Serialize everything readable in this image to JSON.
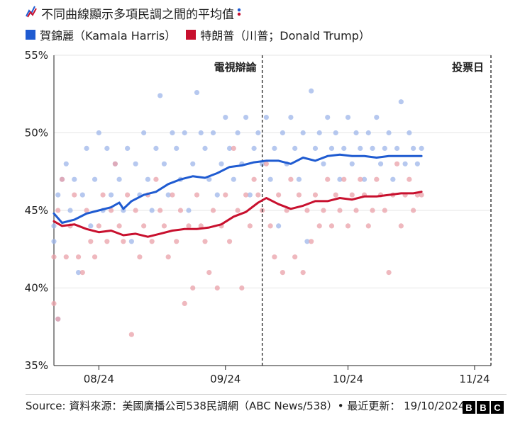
{
  "title": "不同曲線顯示多項民調之間的平均值",
  "legend": {
    "harris": "賀錦麗（Kamala Harris）",
    "trump": "特朗普（川普；Donald Trump）"
  },
  "footer": {
    "source": "Source: 資料來源：美國廣播公司538民調網（ABC News/538）• 最近更新： 19/10/2024",
    "logo_letters": [
      "B",
      "B",
      "C"
    ]
  },
  "colors": {
    "harris": "#1f5bd1",
    "trump": "#c8102e",
    "harris_dot": "#9db5ea",
    "trump_dot": "#eaa0a8"
  },
  "chart_data": {
    "type": "line",
    "x_start": "2024-07-21",
    "x_end": "2024-11-05",
    "ylim": [
      35,
      55
    ],
    "y_ticks": [
      {
        "v": 55,
        "label": "55%"
      },
      {
        "v": 50,
        "label": "50%"
      },
      {
        "v": 45,
        "label": "45%"
      },
      {
        "v": 40,
        "label": "40%"
      },
      {
        "v": 35,
        "label": "35%"
      }
    ],
    "x_ticks": [
      {
        "date": "2024-08-01",
        "label": "08/24"
      },
      {
        "date": "2024-09-01",
        "label": "09/24"
      },
      {
        "date": "2024-10-01",
        "label": "10/24"
      },
      {
        "date": "2024-11-01",
        "label": "11/24"
      }
    ],
    "grid": true,
    "legend_position": "top-left",
    "annotations": [
      {
        "date": "2024-09-10",
        "label": "電視辯論"
      },
      {
        "date": "2024-11-05",
        "label": "投票日"
      }
    ],
    "series": [
      {
        "name": "賀錦麗（Kamala Harris）",
        "key": "harris",
        "line": [
          [
            "2024-07-21",
            44.8
          ],
          [
            "2024-07-23",
            44.2
          ],
          [
            "2024-07-26",
            44.4
          ],
          [
            "2024-07-29",
            44.8
          ],
          [
            "2024-08-01",
            45.0
          ],
          [
            "2024-08-04",
            45.2
          ],
          [
            "2024-08-06",
            45.5
          ],
          [
            "2024-08-07",
            45.1
          ],
          [
            "2024-08-09",
            45.6
          ],
          [
            "2024-08-12",
            46.0
          ],
          [
            "2024-08-15",
            46.2
          ],
          [
            "2024-08-18",
            46.7
          ],
          [
            "2024-08-21",
            47.0
          ],
          [
            "2024-08-24",
            47.2
          ],
          [
            "2024-08-27",
            47.1
          ],
          [
            "2024-08-30",
            47.4
          ],
          [
            "2024-09-02",
            47.8
          ],
          [
            "2024-09-05",
            47.9
          ],
          [
            "2024-09-08",
            48.1
          ],
          [
            "2024-09-11",
            48.2
          ],
          [
            "2024-09-14",
            48.2
          ],
          [
            "2024-09-17",
            48.0
          ],
          [
            "2024-09-20",
            48.4
          ],
          [
            "2024-09-23",
            48.2
          ],
          [
            "2024-09-26",
            48.5
          ],
          [
            "2024-09-29",
            48.6
          ],
          [
            "2024-10-02",
            48.5
          ],
          [
            "2024-10-05",
            48.5
          ],
          [
            "2024-10-08",
            48.4
          ],
          [
            "2024-10-11",
            48.5
          ],
          [
            "2024-10-14",
            48.5
          ],
          [
            "2024-10-17",
            48.5
          ],
          [
            "2024-10-19",
            48.5
          ]
        ],
        "polls": [
          [
            "2024-07-21",
            43
          ],
          [
            "2024-07-21",
            44
          ],
          [
            "2024-07-22",
            46
          ],
          [
            "2024-07-22",
            38
          ],
          [
            "2024-07-23",
            47
          ],
          [
            "2024-07-24",
            48
          ],
          [
            "2024-07-25",
            45
          ],
          [
            "2024-07-26",
            47
          ],
          [
            "2024-07-27",
            41
          ],
          [
            "2024-07-28",
            46
          ],
          [
            "2024-07-29",
            49
          ],
          [
            "2024-07-30",
            44
          ],
          [
            "2024-07-31",
            47
          ],
          [
            "2024-08-01",
            50
          ],
          [
            "2024-08-02",
            45
          ],
          [
            "2024-08-03",
            49
          ],
          [
            "2024-08-04",
            46
          ],
          [
            "2024-08-05",
            48
          ],
          [
            "2024-08-06",
            47
          ],
          [
            "2024-08-07",
            45
          ],
          [
            "2024-08-08",
            49
          ],
          [
            "2024-08-09",
            43
          ],
          [
            "2024-08-10",
            48
          ],
          [
            "2024-08-11",
            46
          ],
          [
            "2024-08-12",
            50
          ],
          [
            "2024-08-13",
            47
          ],
          [
            "2024-08-14",
            45
          ],
          [
            "2024-08-15",
            49
          ],
          [
            "2024-08-16",
            52.4
          ],
          [
            "2024-08-17",
            48
          ],
          [
            "2024-08-18",
            46
          ],
          [
            "2024-08-19",
            50
          ],
          [
            "2024-08-20",
            49
          ],
          [
            "2024-08-21",
            47
          ],
          [
            "2024-08-22",
            50
          ],
          [
            "2024-08-23",
            45
          ],
          [
            "2024-08-24",
            48
          ],
          [
            "2024-08-25",
            52.6
          ],
          [
            "2024-08-26",
            50
          ],
          [
            "2024-08-27",
            49
          ],
          [
            "2024-08-28",
            47
          ],
          [
            "2024-08-29",
            50
          ],
          [
            "2024-08-30",
            46
          ],
          [
            "2024-08-31",
            48
          ],
          [
            "2024-09-01",
            51
          ],
          [
            "2024-09-02",
            49
          ],
          [
            "2024-09-03",
            47
          ],
          [
            "2024-09-04",
            50
          ],
          [
            "2024-09-05",
            48
          ],
          [
            "2024-09-06",
            51
          ],
          [
            "2024-09-07",
            46
          ],
          [
            "2024-09-08",
            49
          ],
          [
            "2024-09-09",
            50
          ],
          [
            "2024-09-10",
            48
          ],
          [
            "2024-09-11",
            51
          ],
          [
            "2024-09-12",
            47
          ],
          [
            "2024-09-13",
            49
          ],
          [
            "2024-09-14",
            44
          ],
          [
            "2024-09-15",
            50
          ],
          [
            "2024-09-16",
            48
          ],
          [
            "2024-09-17",
            51
          ],
          [
            "2024-09-18",
            49
          ],
          [
            "2024-09-19",
            47
          ],
          [
            "2024-09-20",
            50
          ],
          [
            "2024-09-21",
            43
          ],
          [
            "2024-09-22",
            52.7
          ],
          [
            "2024-09-23",
            49
          ],
          [
            "2024-09-24",
            50
          ],
          [
            "2024-09-25",
            48
          ],
          [
            "2024-09-26",
            51
          ],
          [
            "2024-09-27",
            49
          ],
          [
            "2024-09-28",
            50
          ],
          [
            "2024-09-29",
            47
          ],
          [
            "2024-09-30",
            49
          ],
          [
            "2024-10-01",
            51
          ],
          [
            "2024-10-02",
            48
          ],
          [
            "2024-10-03",
            50
          ],
          [
            "2024-10-04",
            49
          ],
          [
            "2024-10-05",
            47
          ],
          [
            "2024-10-06",
            50
          ],
          [
            "2024-10-07",
            49
          ],
          [
            "2024-10-08",
            51
          ],
          [
            "2024-10-09",
            48
          ],
          [
            "2024-10-10",
            49
          ],
          [
            "2024-10-11",
            50
          ],
          [
            "2024-10-12",
            47
          ],
          [
            "2024-10-13",
            49
          ],
          [
            "2024-10-14",
            52
          ],
          [
            "2024-10-15",
            48
          ],
          [
            "2024-10-16",
            50
          ],
          [
            "2024-10-17",
            49
          ],
          [
            "2024-10-18",
            48
          ],
          [
            "2024-10-19",
            49
          ]
        ]
      },
      {
        "name": "特朗普（川普；Donald Trump）",
        "key": "trump",
        "line": [
          [
            "2024-07-21",
            44.3
          ],
          [
            "2024-07-23",
            44.0
          ],
          [
            "2024-07-26",
            44.1
          ],
          [
            "2024-07-29",
            43.8
          ],
          [
            "2024-08-01",
            43.6
          ],
          [
            "2024-08-04",
            43.7
          ],
          [
            "2024-08-07",
            43.4
          ],
          [
            "2024-08-10",
            43.5
          ],
          [
            "2024-08-13",
            43.3
          ],
          [
            "2024-08-16",
            43.5
          ],
          [
            "2024-08-19",
            43.7
          ],
          [
            "2024-08-22",
            43.8
          ],
          [
            "2024-08-25",
            43.8
          ],
          [
            "2024-08-28",
            43.9
          ],
          [
            "2024-08-31",
            44.1
          ],
          [
            "2024-09-03",
            44.6
          ],
          [
            "2024-09-06",
            44.9
          ],
          [
            "2024-09-09",
            45.5
          ],
          [
            "2024-09-11",
            45.8
          ],
          [
            "2024-09-14",
            45.4
          ],
          [
            "2024-09-17",
            45.1
          ],
          [
            "2024-09-20",
            45.3
          ],
          [
            "2024-09-23",
            45.6
          ],
          [
            "2024-09-26",
            45.6
          ],
          [
            "2024-09-29",
            45.8
          ],
          [
            "2024-10-02",
            45.7
          ],
          [
            "2024-10-05",
            45.9
          ],
          [
            "2024-10-08",
            45.9
          ],
          [
            "2024-10-11",
            46.0
          ],
          [
            "2024-10-14",
            46.1
          ],
          [
            "2024-10-17",
            46.1
          ],
          [
            "2024-10-19",
            46.2
          ]
        ],
        "polls": [
          [
            "2024-07-21",
            39
          ],
          [
            "2024-07-21",
            42
          ],
          [
            "2024-07-22",
            45
          ],
          [
            "2024-07-22",
            38
          ],
          [
            "2024-07-23",
            47
          ],
          [
            "2024-07-24",
            42
          ],
          [
            "2024-07-25",
            44
          ],
          [
            "2024-07-26",
            46
          ],
          [
            "2024-07-27",
            42
          ],
          [
            "2024-07-28",
            41
          ],
          [
            "2024-07-29",
            45
          ],
          [
            "2024-07-30",
            43
          ],
          [
            "2024-07-31",
            42
          ],
          [
            "2024-08-01",
            44
          ],
          [
            "2024-08-02",
            46
          ],
          [
            "2024-08-03",
            43
          ],
          [
            "2024-08-04",
            45
          ],
          [
            "2024-08-05",
            48
          ],
          [
            "2024-08-06",
            44
          ],
          [
            "2024-08-07",
            43
          ],
          [
            "2024-08-08",
            46
          ],
          [
            "2024-08-09",
            37
          ],
          [
            "2024-08-10",
            45
          ],
          [
            "2024-08-11",
            42
          ],
          [
            "2024-08-12",
            44
          ],
          [
            "2024-08-13",
            46
          ],
          [
            "2024-08-14",
            43
          ],
          [
            "2024-08-15",
            47
          ],
          [
            "2024-08-16",
            45
          ],
          [
            "2024-08-17",
            44
          ],
          [
            "2024-08-18",
            42
          ],
          [
            "2024-08-19",
            46
          ],
          [
            "2024-08-20",
            43
          ],
          [
            "2024-08-21",
            45
          ],
          [
            "2024-08-22",
            39
          ],
          [
            "2024-08-23",
            44
          ],
          [
            "2024-08-24",
            40
          ],
          [
            "2024-08-25",
            46
          ],
          [
            "2024-08-26",
            44
          ],
          [
            "2024-08-27",
            43
          ],
          [
            "2024-08-28",
            41
          ],
          [
            "2024-08-29",
            45
          ],
          [
            "2024-08-30",
            40
          ],
          [
            "2024-08-31",
            44
          ],
          [
            "2024-09-01",
            46
          ],
          [
            "2024-09-02",
            43
          ],
          [
            "2024-09-03",
            49
          ],
          [
            "2024-09-04",
            45
          ],
          [
            "2024-09-05",
            40
          ],
          [
            "2024-09-06",
            46
          ],
          [
            "2024-09-07",
            44
          ],
          [
            "2024-09-08",
            47
          ],
          [
            "2024-09-09",
            46
          ],
          [
            "2024-09-10",
            45
          ],
          [
            "2024-09-11",
            48
          ],
          [
            "2024-09-12",
            44
          ],
          [
            "2024-09-13",
            42
          ],
          [
            "2024-09-14",
            46
          ],
          [
            "2024-09-15",
            41
          ],
          [
            "2024-09-16",
            45
          ],
          [
            "2024-09-17",
            47
          ],
          [
            "2024-09-18",
            42
          ],
          [
            "2024-09-19",
            46
          ],
          [
            "2024-09-20",
            41
          ],
          [
            "2024-09-21",
            45
          ],
          [
            "2024-09-22",
            43
          ],
          [
            "2024-09-23",
            46
          ],
          [
            "2024-09-24",
            44
          ],
          [
            "2024-09-25",
            45
          ],
          [
            "2024-09-26",
            47
          ],
          [
            "2024-09-27",
            44
          ],
          [
            "2024-09-28",
            46
          ],
          [
            "2024-09-29",
            45
          ],
          [
            "2024-09-30",
            47
          ],
          [
            "2024-10-01",
            44
          ],
          [
            "2024-10-02",
            46
          ],
          [
            "2024-10-03",
            45
          ],
          [
            "2024-10-04",
            47
          ],
          [
            "2024-10-05",
            46
          ],
          [
            "2024-10-06",
            44
          ],
          [
            "2024-10-07",
            45
          ],
          [
            "2024-10-08",
            47
          ],
          [
            "2024-10-09",
            46
          ],
          [
            "2024-10-10",
            45
          ],
          [
            "2024-10-11",
            41
          ],
          [
            "2024-10-12",
            46
          ],
          [
            "2024-10-13",
            48
          ],
          [
            "2024-10-14",
            44
          ],
          [
            "2024-10-15",
            46
          ],
          [
            "2024-10-16",
            47
          ],
          [
            "2024-10-17",
            45
          ],
          [
            "2024-10-18",
            46
          ],
          [
            "2024-10-19",
            46
          ]
        ]
      }
    ]
  }
}
